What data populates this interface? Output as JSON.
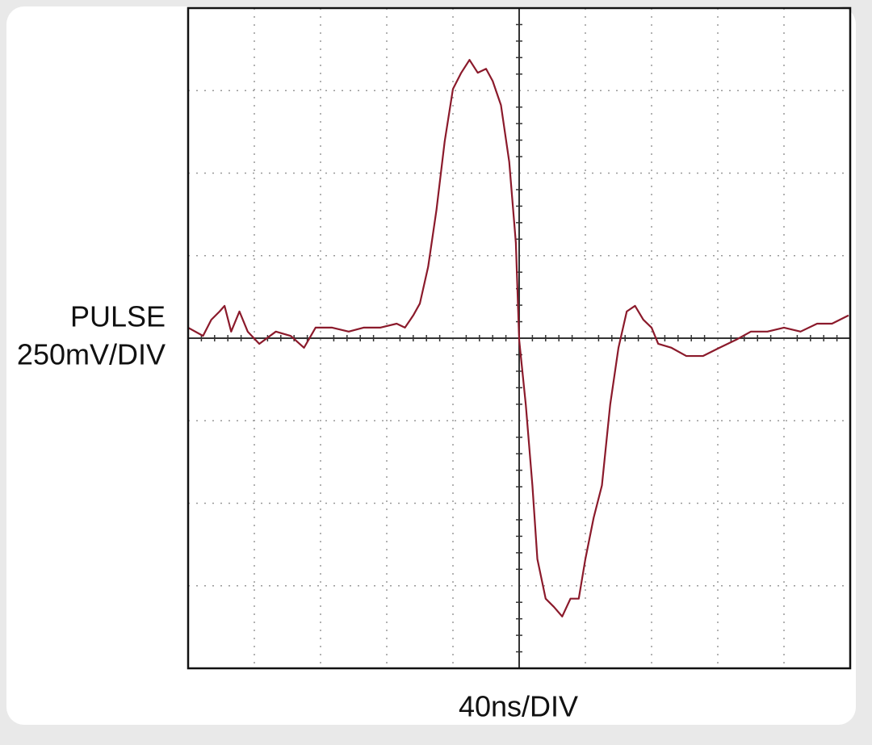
{
  "chart_data": {
    "type": "line",
    "y_label_lines": [
      "PULSE",
      "250mV/DIV"
    ],
    "x_label": "40ns/DIV",
    "xlim": [
      -200,
      200
    ],
    "ylim": [
      -1000,
      1000
    ],
    "xticks": [
      -200,
      -160,
      -120,
      -80,
      -40,
      0,
      40,
      80,
      120,
      160,
      200
    ],
    "yticks": [
      -1000,
      -750,
      -500,
      -250,
      0,
      250,
      500,
      750,
      1000
    ],
    "grid": true,
    "series": [
      {
        "color": "#8b1a2b",
        "x": [
          -200,
          -191,
          -186,
          -181,
          -178,
          -174,
          -169,
          -164,
          -157,
          -147,
          -138,
          -130,
          -123,
          -113,
          -103,
          -94,
          -84,
          -74,
          -69,
          -64,
          -60,
          -55,
          -50,
          -45,
          -40,
          -35,
          -30,
          -25,
          -20,
          -16,
          -11,
          -6,
          -2,
          0,
          4,
          8,
          11,
          16,
          21,
          26,
          31,
          36,
          40,
          45,
          50,
          55,
          60,
          65,
          70,
          75,
          80,
          84,
          92,
          101,
          111,
          121,
          131,
          140,
          150,
          160,
          170,
          180,
          189,
          199
        ],
        "values": [
          32,
          7,
          56,
          81,
          98,
          20,
          81,
          20,
          -17,
          20,
          7,
          -29,
          32,
          32,
          20,
          32,
          32,
          44,
          32,
          69,
          105,
          216,
          387,
          596,
          755,
          804,
          843,
          804,
          816,
          779,
          706,
          534,
          289,
          -5,
          -201,
          -446,
          -669,
          -789,
          -814,
          -843,
          -789,
          -789,
          -669,
          -544,
          -446,
          -201,
          -29,
          81,
          98,
          56,
          32,
          -17,
          -29,
          -54,
          -54,
          -29,
          -5,
          20,
          20,
          32,
          20,
          44,
          44,
          69
        ]
      }
    ]
  }
}
